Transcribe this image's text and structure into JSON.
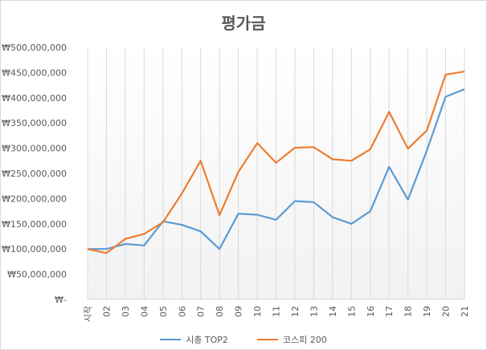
{
  "chart_data": {
    "type": "line",
    "title": "평가금",
    "xlabel": "",
    "ylabel": "",
    "categories": [
      "시작",
      "02",
      "03",
      "04",
      "05",
      "06",
      "07",
      "08",
      "09",
      "10",
      "11",
      "12",
      "13",
      "14",
      "15",
      "16",
      "17",
      "18",
      "19",
      "20",
      "21"
    ],
    "y_tick_labels": [
      "₩-",
      "₩50,000,000",
      "₩100,000,000",
      "₩150,000,000",
      "₩200,000,000",
      "₩250,000,000",
      "₩300,000,000",
      "₩350,000,000",
      "₩400,000,000",
      "₩450,000,000",
      "₩500,000,000"
    ],
    "ylim": [
      0,
      500000000
    ],
    "grid": "vertical",
    "legend": "bottom",
    "series": [
      {
        "name": "시총 TOP2",
        "color": "#5b9bd5",
        "values": [
          100000000,
          100000000,
          110000000,
          107000000,
          155000000,
          148000000,
          135000000,
          100000000,
          170000000,
          168000000,
          158000000,
          195000000,
          193000000,
          163000000,
          150000000,
          175000000,
          263000000,
          198000000,
          295000000,
          402000000,
          417000000
        ]
      },
      {
        "name": "코스피 200",
        "color": "#ed7d31",
        "values": [
          100000000,
          92000000,
          120000000,
          130000000,
          153000000,
          210000000,
          275000000,
          167000000,
          253000000,
          310000000,
          271000000,
          301000000,
          302000000,
          278000000,
          275000000,
          298000000,
          372000000,
          299000000,
          335000000,
          446000000,
          452000000
        ]
      }
    ]
  }
}
